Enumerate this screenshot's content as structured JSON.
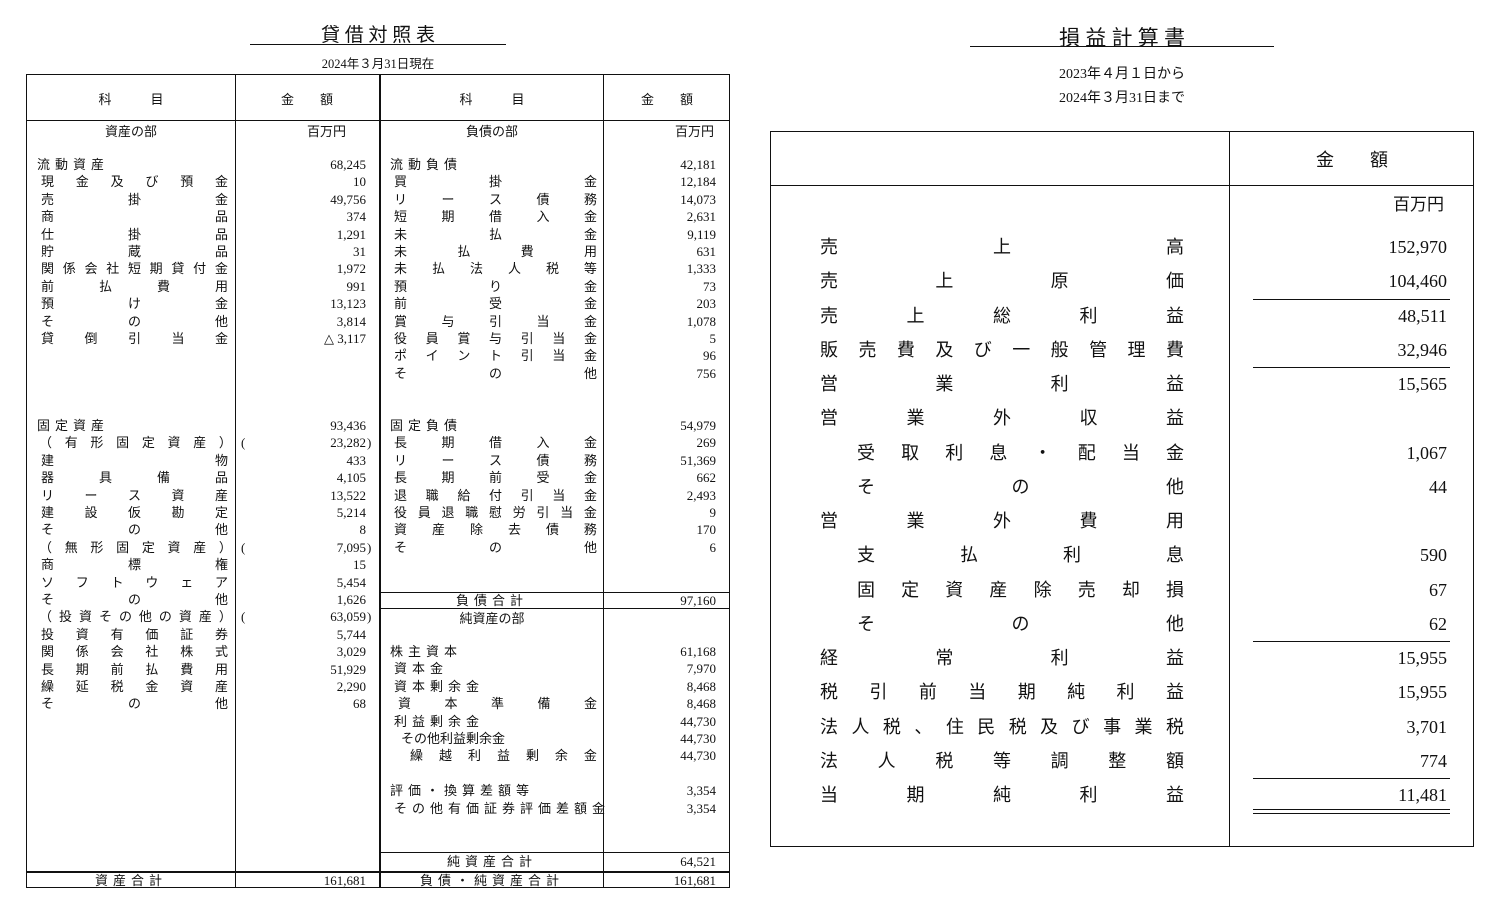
{
  "balance_sheet": {
    "title": "貸 借 対 照 表",
    "date": "2024年３月31日現在",
    "col_item": "科　　　目",
    "col_amount": "金　　額",
    "assets_section": "資産の部",
    "liabilities_section": "負債の部",
    "unit": "百万円",
    "assets": [
      {
        "kind": "heading",
        "label": "流動資産",
        "value": "68,245"
      },
      {
        "kind": "item",
        "label": "現金及び預金",
        "value": "10"
      },
      {
        "kind": "item",
        "label": "売掛金",
        "value": "49,756"
      },
      {
        "kind": "item",
        "label": "商品",
        "value": "374"
      },
      {
        "kind": "item",
        "label": "仕掛品",
        "value": "1,291"
      },
      {
        "kind": "item",
        "label": "貯蔵品",
        "value": "31"
      },
      {
        "kind": "item",
        "label": "関係会社短期貸付金",
        "value": "1,972"
      },
      {
        "kind": "item",
        "label": "前払費用",
        "value": "991"
      },
      {
        "kind": "item",
        "label": "預け金",
        "value": "13,123"
      },
      {
        "kind": "item",
        "label": "その他",
        "value": "3,814"
      },
      {
        "kind": "item",
        "label": "貸倒引当金",
        "value": "△ 3,117"
      },
      {
        "kind": "blank"
      },
      {
        "kind": "blank"
      },
      {
        "kind": "blank"
      },
      {
        "kind": "blank"
      },
      {
        "kind": "heading",
        "label": "固定資産",
        "value": "93,436"
      },
      {
        "kind": "group",
        "label": "（有形固定資産）",
        "value": "23,282"
      },
      {
        "kind": "item",
        "label": "建物",
        "value": "433"
      },
      {
        "kind": "item",
        "label": "器具備品",
        "value": "4,105"
      },
      {
        "kind": "item",
        "label": "リース資産",
        "value": "13,522"
      },
      {
        "kind": "item",
        "label": "建設仮勘定",
        "value": "5,214"
      },
      {
        "kind": "item",
        "label": "その他",
        "value": "8"
      },
      {
        "kind": "group",
        "label": "（無形固定資産）",
        "value": "7,095"
      },
      {
        "kind": "item",
        "label": "商標権",
        "value": "15"
      },
      {
        "kind": "item",
        "label": "ソフトウェア",
        "value": "5,454"
      },
      {
        "kind": "item",
        "label": "その他",
        "value": "1,626"
      },
      {
        "kind": "group",
        "label": "（投資その他の資産）",
        "value": "63,059"
      },
      {
        "kind": "item",
        "label": "投資有価証券",
        "value": "5,744"
      },
      {
        "kind": "item",
        "label": "関係会社株式",
        "value": "3,029"
      },
      {
        "kind": "item",
        "label": "長期前払費用",
        "value": "51,929"
      },
      {
        "kind": "item",
        "label": "繰延税金資産",
        "value": "2,290"
      },
      {
        "kind": "item",
        "label": "その他",
        "value": "68"
      }
    ],
    "liabilities": [
      {
        "kind": "heading",
        "label": "流動負債",
        "value": "42,181"
      },
      {
        "kind": "item",
        "label": "買掛金",
        "value": "12,184"
      },
      {
        "kind": "item",
        "label": "リース債務",
        "value": "14,073"
      },
      {
        "kind": "item",
        "label": "短期借入金",
        "value": "2,631"
      },
      {
        "kind": "item",
        "label": "未払金",
        "value": "9,119"
      },
      {
        "kind": "item",
        "label": "未払費用",
        "value": "631"
      },
      {
        "kind": "item",
        "label": "未払法人税等",
        "value": "1,333"
      },
      {
        "kind": "item",
        "label": "預り金",
        "value": "73"
      },
      {
        "kind": "item",
        "label": "前受金",
        "value": "203"
      },
      {
        "kind": "item",
        "label": "賞与引当金",
        "value": "1,078"
      },
      {
        "kind": "item",
        "label": "役員賞与引当金",
        "value": "5"
      },
      {
        "kind": "item",
        "label": "ポイント引当金",
        "value": "96"
      },
      {
        "kind": "item",
        "label": "その他",
        "value": "756"
      },
      {
        "kind": "blank"
      },
      {
        "kind": "blank"
      },
      {
        "kind": "heading",
        "label": "固定負債",
        "value": "54,979"
      },
      {
        "kind": "item",
        "label": "長期借入金",
        "value": "269"
      },
      {
        "kind": "item",
        "label": "リース債務",
        "value": "51,369"
      },
      {
        "kind": "item",
        "label": "長期前受金",
        "value": "662"
      },
      {
        "kind": "item",
        "label": "退職給付引当金",
        "value": "2,493"
      },
      {
        "kind": "item",
        "label": "役員退職慰労引当金",
        "value": "9"
      },
      {
        "kind": "item",
        "label": "資産除去債務",
        "value": "170"
      },
      {
        "kind": "item",
        "label": "その他",
        "value": "6"
      }
    ],
    "liabilities_total": {
      "label": "負債合計",
      "value": "97,160"
    },
    "net_assets_section": "純資産の部",
    "net_assets": [
      {
        "kind": "heading",
        "label": "株主資本",
        "value": "61,168"
      },
      {
        "kind": "subheading",
        "label": "資本金",
        "value": "7,970"
      },
      {
        "kind": "subheading",
        "label": "資本剰余金",
        "value": "8,468"
      },
      {
        "kind": "subitem",
        "label": "資本準備金",
        "value": "8,468"
      },
      {
        "kind": "subheading",
        "label": "利益剰余金",
        "value": "44,730"
      },
      {
        "kind": "subsubheading",
        "label": "その他利益剰余金",
        "value": "44,730"
      },
      {
        "kind": "subsubitem",
        "label": "繰越利益剰余金",
        "value": "44,730"
      },
      {
        "kind": "blank"
      },
      {
        "kind": "heading",
        "label": "評価・換算差額等",
        "value": "3,354"
      },
      {
        "kind": "subheading",
        "label": "その他有価証券評価差額金",
        "value": "3,354"
      }
    ],
    "net_assets_total": {
      "label": "純資産合計",
      "value": "64,521"
    },
    "assets_total": {
      "label": "資産合計",
      "value": "161,681"
    },
    "liabilities_net_assets_total": {
      "label": "負債・純資産合計",
      "value": "161,681"
    }
  },
  "income_statement": {
    "title": "損 益 計 算 書",
    "period_from": "2023年４月１日から",
    "period_to": "2024年３月31日まで",
    "col_amount": "金　　額",
    "unit": "百万円",
    "rows": [
      {
        "kind": "item",
        "label": "売上高",
        "value": "152,970"
      },
      {
        "kind": "item",
        "label": "売上原価",
        "value": "104,460"
      },
      {
        "kind": "item",
        "label": "売上総利益",
        "value": "48,511",
        "rule_above": true
      },
      {
        "kind": "item",
        "label": "販売費及び一般管理費",
        "value": "32,946"
      },
      {
        "kind": "item",
        "label": "営業利益",
        "value": "15,565",
        "rule_above": true
      },
      {
        "kind": "item",
        "label": "営業外収益",
        "value": ""
      },
      {
        "kind": "sub",
        "label": "受取利息・配当金",
        "value": "1,067"
      },
      {
        "kind": "sub",
        "label": "その他",
        "value": "44"
      },
      {
        "kind": "item",
        "label": "営業外費用",
        "value": ""
      },
      {
        "kind": "sub",
        "label": "支払利息",
        "value": "590"
      },
      {
        "kind": "sub",
        "label": "固定資産除売却損",
        "value": "67"
      },
      {
        "kind": "sub",
        "label": "その他",
        "value": "62"
      },
      {
        "kind": "item",
        "label": "経常利益",
        "value": "15,955",
        "rule_above": true
      },
      {
        "kind": "item",
        "label": "税引前当期純利益",
        "value": "15,955"
      },
      {
        "kind": "item",
        "label": "法人税、住民税及び事業税",
        "value": "3,701"
      },
      {
        "kind": "item",
        "label": "法人税等調整額",
        "value": "774"
      },
      {
        "kind": "item",
        "label": "当期純利益",
        "value": "11,481",
        "rule_above": true,
        "double_rule_below": true
      }
    ]
  }
}
